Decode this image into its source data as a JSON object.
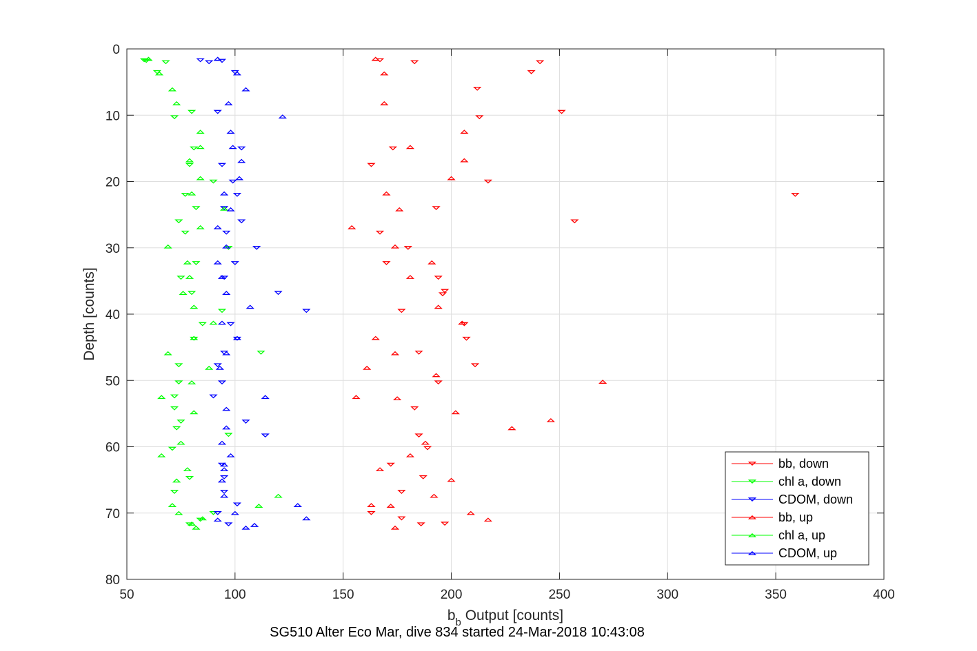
{
  "chart_data": {
    "type": "scatter",
    "xlabel_base": "b",
    "xlabel_sub": "b",
    "xlabel_rest": " Output [counts]",
    "ylabel": "Depth [counts]",
    "caption": "SG510 Alter Eco Mar, dive 834 started 24-Mar-2018 10:43:08",
    "xlim": [
      50,
      400
    ],
    "ylim": [
      0,
      80
    ],
    "y_reversed": true,
    "grid": true,
    "legend_position": "bottom-right",
    "x_ticks": [
      50,
      100,
      150,
      200,
      250,
      300,
      350,
      400
    ],
    "y_ticks": [
      0,
      10,
      20,
      30,
      40,
      50,
      60,
      70,
      80
    ],
    "series": [
      {
        "name": "bb, down",
        "color": "#ff0000",
        "marker": "triangle-down",
        "points": [
          [
            167,
            1.7
          ],
          [
            183,
            2
          ],
          [
            241,
            2
          ],
          [
            237,
            3.5
          ],
          [
            212,
            6
          ],
          [
            251,
            9.5
          ],
          [
            213,
            10.3
          ],
          [
            173,
            15
          ],
          [
            163,
            17.5
          ],
          [
            217,
            20
          ],
          [
            359,
            22
          ],
          [
            193,
            24
          ],
          [
            257,
            26
          ],
          [
            167,
            27.7
          ],
          [
            180,
            30
          ],
          [
            170,
            32.3
          ],
          [
            194,
            34.5
          ],
          [
            197,
            36.5
          ],
          [
            196,
            37
          ],
          [
            177,
            39.5
          ],
          [
            206,
            41.5
          ],
          [
            207,
            43.7
          ],
          [
            185,
            45.8
          ],
          [
            211,
            47.7
          ],
          [
            194,
            50.3
          ],
          [
            183,
            54.2
          ],
          [
            185,
            58.3
          ],
          [
            189,
            60.2
          ],
          [
            172,
            62.7
          ],
          [
            187,
            64.6
          ],
          [
            177,
            66.8
          ],
          [
            163,
            70
          ],
          [
            177,
            70.8
          ],
          [
            197,
            71.6
          ],
          [
            186,
            71.7
          ]
        ]
      },
      {
        "name": "chl a, down",
        "color": "#00ff00",
        "marker": "triangle-down",
        "points": [
          [
            58,
            1.7
          ],
          [
            59,
            1.8
          ],
          [
            68,
            2
          ],
          [
            64,
            3.5
          ],
          [
            80,
            9.5
          ],
          [
            72,
            10.3
          ],
          [
            81,
            15
          ],
          [
            79,
            17.5
          ],
          [
            90,
            20
          ],
          [
            77,
            22
          ],
          [
            82,
            24
          ],
          [
            74,
            26
          ],
          [
            77,
            27.7
          ],
          [
            97,
            30
          ],
          [
            82,
            32.3
          ],
          [
            75,
            34.5
          ],
          [
            80,
            36.8
          ],
          [
            94,
            39.5
          ],
          [
            85,
            41.5
          ],
          [
            81,
            43.7
          ],
          [
            112,
            45.8
          ],
          [
            74,
            47.7
          ],
          [
            74,
            50.3
          ],
          [
            72,
            52.4
          ],
          [
            72,
            54.2
          ],
          [
            75,
            56.2
          ],
          [
            73,
            57.2
          ],
          [
            97,
            58.2
          ],
          [
            71,
            60.3
          ],
          [
            79,
            64.7
          ],
          [
            72,
            66.8
          ],
          [
            90,
            70
          ],
          [
            84,
            71
          ],
          [
            79,
            71.7
          ]
        ]
      },
      {
        "name": "CDOM, down",
        "color": "#0000ff",
        "marker": "triangle-down",
        "points": [
          [
            84,
            1.7
          ],
          [
            88,
            2
          ],
          [
            94,
            1.8
          ],
          [
            100,
            3.5
          ],
          [
            92,
            9.5
          ],
          [
            103,
            15
          ],
          [
            94,
            17.5
          ],
          [
            99,
            20
          ],
          [
            101,
            22
          ],
          [
            95,
            24
          ],
          [
            103,
            26
          ],
          [
            96,
            27.7
          ],
          [
            110,
            30
          ],
          [
            100,
            32.3
          ],
          [
            95,
            34.5
          ],
          [
            120,
            36.8
          ],
          [
            133,
            39.5
          ],
          [
            98,
            41.5
          ],
          [
            101,
            43.7
          ],
          [
            95,
            45.8
          ],
          [
            92,
            47.7
          ],
          [
            94,
            50.3
          ],
          [
            90,
            52.4
          ],
          [
            105,
            56.2
          ],
          [
            114,
            58.3
          ],
          [
            94,
            62.7
          ],
          [
            95,
            64.6
          ],
          [
            95,
            66.8
          ],
          [
            101,
            68.7
          ],
          [
            92,
            70
          ],
          [
            97,
            71.7
          ]
        ]
      },
      {
        "name": "bb, up",
        "color": "#ff0000",
        "marker": "triangle-up",
        "points": [
          [
            165,
            1.5
          ],
          [
            169,
            3.7
          ],
          [
            169,
            8.2
          ],
          [
            206,
            12.5
          ],
          [
            181,
            14.8
          ],
          [
            206,
            16.8
          ],
          [
            200,
            19.5
          ],
          [
            170,
            21.8
          ],
          [
            176,
            24.2
          ],
          [
            154,
            26.9
          ],
          [
            174,
            29.8
          ],
          [
            191,
            32.2
          ],
          [
            181,
            34.4
          ],
          [
            194,
            38.9
          ],
          [
            205,
            41.3
          ],
          [
            165,
            43.6
          ],
          [
            174,
            45.9
          ],
          [
            161,
            48.1
          ],
          [
            193,
            49.2
          ],
          [
            270,
            50.2
          ],
          [
            156,
            52.5
          ],
          [
            175,
            52.7
          ],
          [
            202,
            54.8
          ],
          [
            246,
            56
          ],
          [
            228,
            57.2
          ],
          [
            188,
            59.4
          ],
          [
            181,
            61.3
          ],
          [
            167,
            63.4
          ],
          [
            200,
            65
          ],
          [
            192,
            67.4
          ],
          [
            163,
            68.8
          ],
          [
            172,
            68.9
          ],
          [
            209,
            70
          ],
          [
            217,
            71
          ],
          [
            174,
            72.2
          ]
        ]
      },
      {
        "name": "chl a, up",
        "color": "#00ff00",
        "marker": "triangle-up",
        "points": [
          [
            60,
            1.5
          ],
          [
            65,
            3.7
          ],
          [
            71,
            6.1
          ],
          [
            73,
            8.2
          ],
          [
            84,
            12.5
          ],
          [
            84,
            14.8
          ],
          [
            79,
            16.8
          ],
          [
            84,
            19.5
          ],
          [
            80,
            21.8
          ],
          [
            95,
            24.1
          ],
          [
            84,
            26.9
          ],
          [
            69,
            29.8
          ],
          [
            78,
            32.2
          ],
          [
            79,
            34.4
          ],
          [
            76,
            36.8
          ],
          [
            81,
            38.9
          ],
          [
            90,
            41.3
          ],
          [
            81,
            43.6
          ],
          [
            69,
            45.9
          ],
          [
            88,
            48.1
          ],
          [
            80,
            50.3
          ],
          [
            66,
            52.5
          ],
          [
            81,
            54.8
          ],
          [
            75,
            59.4
          ],
          [
            66,
            61.3
          ],
          [
            78,
            63.4
          ],
          [
            73,
            65.1
          ],
          [
            120,
            67.4
          ],
          [
            71,
            68.8
          ],
          [
            111,
            68.9
          ],
          [
            74,
            70
          ],
          [
            85,
            70.8
          ],
          [
            80,
            71.6
          ],
          [
            82,
            72.2
          ]
        ]
      },
      {
        "name": "CDOM, up",
        "color": "#0000ff",
        "marker": "triangle-up",
        "points": [
          [
            92,
            1.5
          ],
          [
            101,
            3.7
          ],
          [
            105,
            6.1
          ],
          [
            97,
            8.2
          ],
          [
            122,
            10.2
          ],
          [
            98,
            12.5
          ],
          [
            99,
            14.8
          ],
          [
            103,
            16.9
          ],
          [
            102,
            19.5
          ],
          [
            95,
            21.8
          ],
          [
            98,
            24.2
          ],
          [
            92,
            26.9
          ],
          [
            96,
            29.8
          ],
          [
            92,
            32.2
          ],
          [
            94,
            34.4
          ],
          [
            96,
            36.8
          ],
          [
            107,
            38.9
          ],
          [
            94,
            41.3
          ],
          [
            101,
            43.6
          ],
          [
            96,
            45.9
          ],
          [
            93,
            48.1
          ],
          [
            114,
            52.5
          ],
          [
            96,
            54.3
          ],
          [
            96,
            57.1
          ],
          [
            94,
            59.4
          ],
          [
            98,
            61.3
          ],
          [
            95,
            62.7
          ],
          [
            95,
            63.4
          ],
          [
            94,
            65.1
          ],
          [
            95,
            67.4
          ],
          [
            129,
            68.8
          ],
          [
            100,
            70
          ],
          [
            133,
            70.8
          ],
          [
            92,
            71
          ],
          [
            109,
            71.8
          ],
          [
            105,
            72.2
          ]
        ]
      }
    ]
  }
}
